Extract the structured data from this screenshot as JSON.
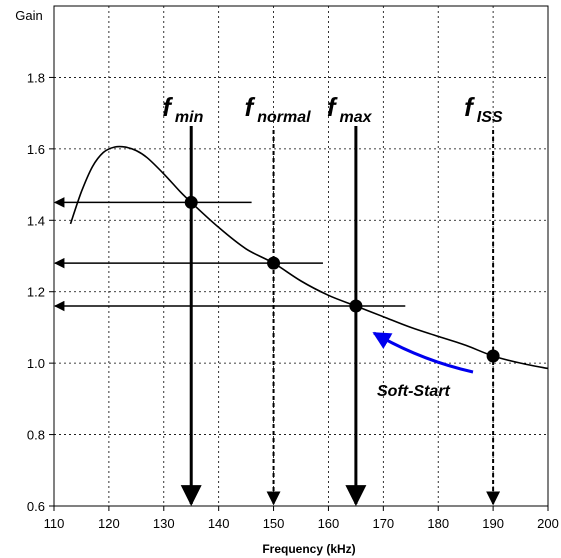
{
  "chart_data": {
    "type": "line",
    "xlabel": "Frequency (kHz)",
    "ylabel": "Gain",
    "xlim": [
      110,
      200
    ],
    "ylim": [
      0.6,
      2.0
    ],
    "x_ticks": [
      110,
      120,
      130,
      140,
      150,
      160,
      170,
      180,
      190,
      200
    ],
    "y_ticks": [
      "0.6",
      "0.8",
      "1.0",
      "1.2",
      "1.4",
      "1.6",
      "1.8"
    ],
    "grid": true,
    "series": [
      {
        "x": [
          113,
          115,
          117,
          119,
          121,
          123,
          125,
          127,
          130,
          133,
          135,
          140,
          145,
          150,
          155,
          160,
          165,
          170,
          175,
          180,
          185,
          190,
          195,
          200
        ],
        "y": [
          1.39,
          1.48,
          1.55,
          1.59,
          1.605,
          1.605,
          1.595,
          1.575,
          1.53,
          1.48,
          1.45,
          1.38,
          1.32,
          1.28,
          1.23,
          1.19,
          1.16,
          1.13,
          1.1,
          1.075,
          1.05,
          1.02,
          1.0,
          0.985
        ]
      }
    ],
    "markers": [
      {
        "main": "f",
        "sub": "min",
        "x": 135,
        "y": 1.45,
        "line": "solid",
        "arrow_to_x": 110,
        "arrow_from_x": 146
      },
      {
        "main": "f",
        "sub": "normal",
        "x": 150,
        "y": 1.28,
        "line": "dashed",
        "arrow_to_x": 110,
        "arrow_from_x": 159
      },
      {
        "main": "f",
        "sub": "max",
        "x": 165,
        "y": 1.16,
        "line": "solid",
        "arrow_to_x": 110,
        "arrow_from_x": 174
      },
      {
        "main": "f",
        "sub": "ISS",
        "x": 190,
        "y": 1.02,
        "line": "dashed"
      }
    ],
    "annotation": {
      "text": "Soft-Start",
      "color": "#0000ee"
    }
  }
}
